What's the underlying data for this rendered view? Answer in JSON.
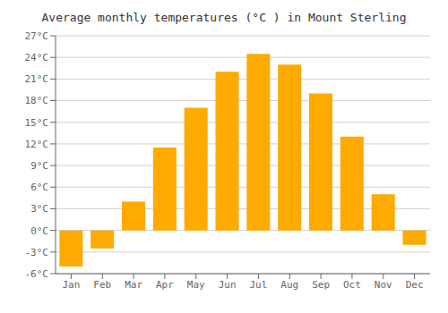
{
  "chart_data": {
    "type": "bar",
    "title": "Average monthly temperatures (°C ) in Mount Sterling",
    "categories": [
      "Jan",
      "Feb",
      "Mar",
      "Apr",
      "May",
      "Jun",
      "Jul",
      "Aug",
      "Sep",
      "Oct",
      "Nov",
      "Dec"
    ],
    "values": [
      -5.0,
      -2.5,
      4.0,
      11.5,
      17.0,
      22.0,
      24.5,
      23.0,
      19.0,
      13.0,
      5.0,
      -2.0
    ],
    "color": "#FFAA00",
    "ylim": [
      -6,
      27
    ],
    "yticks": [
      {
        "value": -6,
        "label": "-6°C"
      },
      {
        "value": -3,
        "label": "-3°C"
      },
      {
        "value": 0,
        "label": "0°C"
      },
      {
        "value": 3,
        "label": "3°C"
      },
      {
        "value": 6,
        "label": "6°C"
      },
      {
        "value": 9,
        "label": "9°C"
      },
      {
        "value": 12,
        "label": "12°C"
      },
      {
        "value": 15,
        "label": "15°C"
      },
      {
        "value": 18,
        "label": "18°C"
      },
      {
        "value": 21,
        "label": "21°C"
      },
      {
        "value": 24,
        "label": "24°C"
      },
      {
        "value": 27,
        "label": "27°C"
      }
    ],
    "grid": true
  }
}
